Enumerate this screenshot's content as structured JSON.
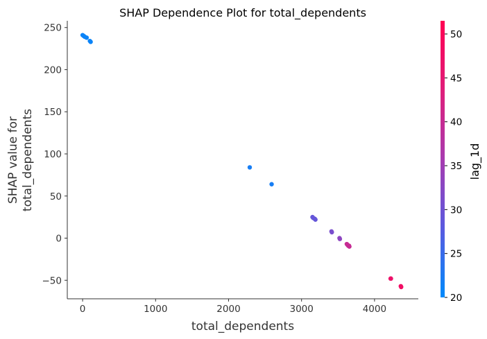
{
  "chart_data": {
    "type": "scatter",
    "title": "SHAP Dependence Plot for total_dependents",
    "xlabel": "total_dependents",
    "ylabel_lines": [
      "SHAP value for",
      "total_dependents"
    ],
    "colorbar_label": "lag_1d",
    "xlim": [
      -210,
      4600
    ],
    "ylim": [
      -72,
      258
    ],
    "x_ticks": [
      0,
      1000,
      2000,
      3000,
      4000
    ],
    "y_ticks": [
      -50,
      0,
      50,
      100,
      150,
      200,
      250
    ],
    "color_ticks": [
      20,
      25,
      30,
      35,
      40,
      45,
      50
    ],
    "color_range": [
      20,
      51.5
    ],
    "colormap": [
      "#008afb",
      "#5a5ae0",
      "#a83bb0",
      "#e01e7a",
      "#ff0052"
    ],
    "grid": false,
    "points": [
      {
        "x": 0,
        "y": 241,
        "c": 21
      },
      {
        "x": 15,
        "y": 240,
        "c": 21
      },
      {
        "x": 30,
        "y": 239,
        "c": 21
      },
      {
        "x": 55,
        "y": 238,
        "c": 21
      },
      {
        "x": 100,
        "y": 234,
        "c": 21
      },
      {
        "x": 110,
        "y": 233,
        "c": 21
      },
      {
        "x": 2290,
        "y": 84,
        "c": 22
      },
      {
        "x": 2590,
        "y": 64,
        "c": 22
      },
      {
        "x": 3150,
        "y": 25,
        "c": 29
      },
      {
        "x": 3160,
        "y": 24,
        "c": 29
      },
      {
        "x": 3180,
        "y": 23,
        "c": 29
      },
      {
        "x": 3190,
        "y": 22,
        "c": 29
      },
      {
        "x": 3410,
        "y": 8,
        "c": 31
      },
      {
        "x": 3415,
        "y": 7,
        "c": 31
      },
      {
        "x": 3520,
        "y": 0,
        "c": 33
      },
      {
        "x": 3525,
        "y": -1,
        "c": 33
      },
      {
        "x": 3620,
        "y": -7,
        "c": 40
      },
      {
        "x": 3630,
        "y": -8,
        "c": 40
      },
      {
        "x": 3640,
        "y": -9,
        "c": 40
      },
      {
        "x": 3650,
        "y": -9,
        "c": 40
      },
      {
        "x": 3655,
        "y": -10,
        "c": 40
      },
      {
        "x": 4220,
        "y": -48,
        "c": 47
      },
      {
        "x": 4225,
        "y": -48,
        "c": 47
      },
      {
        "x": 4360,
        "y": -57,
        "c": 48
      },
      {
        "x": 4365,
        "y": -58,
        "c": 48
      }
    ]
  }
}
